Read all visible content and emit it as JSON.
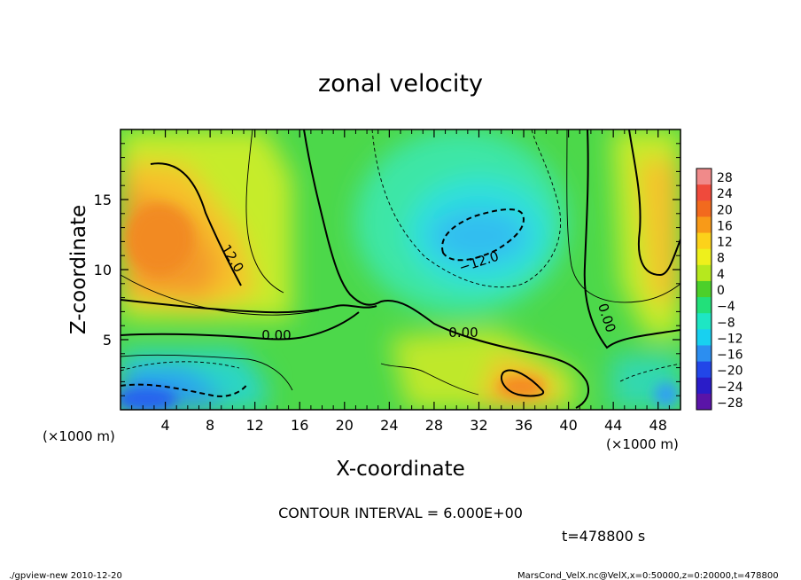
{
  "chart_data": {
    "type": "heatmap",
    "title": "zonal velocity",
    "xlabel": "X-coordinate",
    "ylabel": "Z-coordinate",
    "x_unit_label": "(×1000 m)",
    "xlim": [
      0,
      50
    ],
    "ylim": [
      0,
      20
    ],
    "x_ticks": [
      4,
      8,
      12,
      16,
      20,
      24,
      28,
      32,
      36,
      40,
      44,
      48
    ],
    "x_tick_labels": [
      "4",
      "8",
      "12",
      "16",
      "20",
      "24",
      "28",
      "32",
      "36",
      "40",
      "44",
      "48"
    ],
    "y_ticks": [
      5,
      10,
      15
    ],
    "y_tick_labels": [
      "5",
      "10",
      "15"
    ],
    "colorbar": {
      "levels": [
        28,
        24,
        20,
        16,
        12,
        8,
        4,
        0,
        -4,
        -8,
        -12,
        -16,
        -20,
        -24,
        -28
      ],
      "labels": [
        "28",
        "24",
        "20",
        "16",
        "12",
        "8",
        "4",
        "0",
        "−4",
        "−8",
        "−12",
        "−16",
        "−20",
        "−24",
        "−28"
      ],
      "colors": [
        "#f08a8a",
        "#ef4a3c",
        "#f26a1e",
        "#f89a18",
        "#fcd21a",
        "#eef01c",
        "#b6e81e",
        "#4cd02a",
        "#22e07a",
        "#1ee6c4",
        "#18d0f0",
        "#2c8ef0",
        "#2246e8",
        "#2a1cc8",
        "#5a14a8"
      ]
    },
    "contour_interval_text": "CONTOUR INTERVAL = 6.000E+00",
    "contour_labels": [
      "12.0",
      "0.00",
      "0.00",
      "−12.0",
      "0.00"
    ],
    "features": [
      {
        "kind": "max",
        "x": 5.5,
        "z": 11.5,
        "value": 17
      },
      {
        "kind": "min",
        "x": 32,
        "z": 12,
        "value": -14
      },
      {
        "kind": "max",
        "x": 49,
        "z": 12,
        "value": 15
      },
      {
        "kind": "min",
        "x": 2.5,
        "z": 1.0,
        "value": -20
      },
      {
        "kind": "max",
        "x": 34.5,
        "z": 2.0,
        "value": 16
      },
      {
        "kind": "min",
        "x": 47,
        "z": 1.5,
        "value": -13
      }
    ]
  },
  "time_text": "t=478800 s",
  "footer": {
    "left": "./gpview-new  2010-12-20",
    "right": "MarsCond_VelX.nc@VelX,x=0:50000,z=0:20000,t=478800"
  }
}
